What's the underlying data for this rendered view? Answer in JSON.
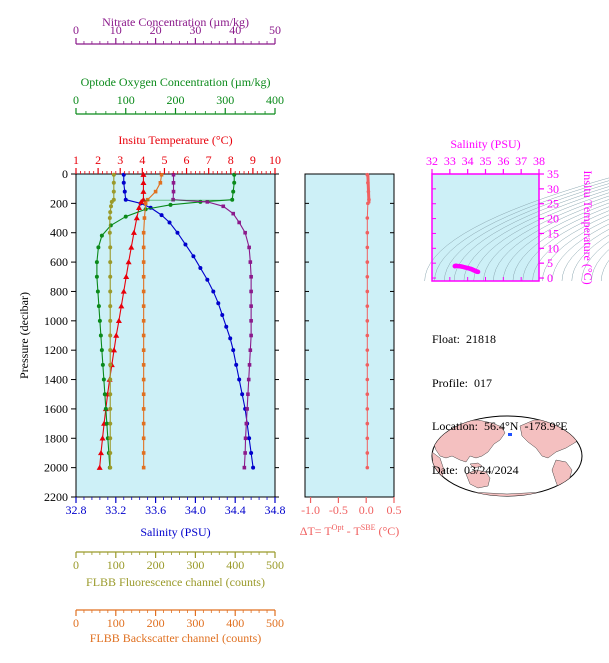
{
  "chart_data": [
    {
      "type": "line",
      "name": "main-profile",
      "ylabel": "Pressure (decibar)",
      "ylim": [
        2200,
        0
      ],
      "y_ticks": [
        0,
        200,
        400,
        600,
        800,
        1000,
        1200,
        1400,
        1600,
        1800,
        2000,
        2200
      ],
      "axes": [
        {
          "key": "nitrate",
          "label": "Nitrate Concentration (µm/kg)",
          "range": [
            0,
            50
          ],
          "ticks": [
            0,
            10,
            20,
            30,
            40,
            50
          ],
          "color": "#8b1a8b",
          "position": "top-1"
        },
        {
          "key": "oxygen",
          "label": "Optode Oxygen Concentration (µm/kg)",
          "range": [
            0,
            400
          ],
          "ticks": [
            0,
            100,
            200,
            300,
            400
          ],
          "color": "#0a8a1a",
          "position": "top-2"
        },
        {
          "key": "temperature",
          "label": "Insitu Temperature (°C)",
          "range": [
            1,
            10
          ],
          "ticks": [
            1,
            2,
            3,
            4,
            5,
            6,
            7,
            8,
            9,
            10
          ],
          "color": "#e8000b",
          "position": "top-3"
        },
        {
          "key": "salinity",
          "label": "Salinity (PSU)",
          "range": [
            32.8,
            34.8
          ],
          "ticks": [
            "32.8",
            "33.2",
            "33.6",
            "34.0",
            "34.4",
            "34.8"
          ],
          "color": "#0000cc",
          "position": "bottom-1"
        },
        {
          "key": "fluorescence",
          "label": "FLBB Fluorescence channel (counts)",
          "range": [
            0,
            500
          ],
          "ticks": [
            0,
            100,
            200,
            300,
            400,
            500
          ],
          "color": "#9a9a2a",
          "position": "bottom-2"
        },
        {
          "key": "backscatter",
          "label": "FLBB Backscatter channel (counts)",
          "range": [
            0,
            500
          ],
          "ticks": [
            0,
            100,
            200,
            300,
            400,
            500
          ],
          "color": "#e07020",
          "position": "bottom-3"
        }
      ],
      "series": [
        {
          "key": "salinity",
          "color": "#0000cc",
          "points": [
            [
              33.28,
              5
            ],
            [
              33.28,
              60
            ],
            [
              33.29,
              120
            ],
            [
              33.3,
              175
            ],
            [
              33.45,
              200
            ],
            [
              33.55,
              230
            ],
            [
              33.66,
              280
            ],
            [
              33.74,
              330
            ],
            [
              33.82,
              400
            ],
            [
              33.9,
              480
            ],
            [
              33.98,
              560
            ],
            [
              34.05,
              640
            ],
            [
              34.12,
              720
            ],
            [
              34.18,
              800
            ],
            [
              34.23,
              880
            ],
            [
              34.27,
              960
            ],
            [
              34.31,
              1040
            ],
            [
              34.35,
              1120
            ],
            [
              34.38,
              1200
            ],
            [
              34.41,
              1300
            ],
            [
              34.44,
              1400
            ],
            [
              34.47,
              1500
            ],
            [
              34.5,
              1600
            ],
            [
              34.52,
              1700
            ],
            [
              34.54,
              1800
            ],
            [
              34.56,
              1900
            ],
            [
              34.58,
              2000
            ]
          ]
        },
        {
          "key": "temperature",
          "color": "#e8000b",
          "points": [
            [
              4.05,
              5
            ],
            [
              4.05,
              60
            ],
            [
              4.05,
              120
            ],
            [
              4.05,
              175
            ],
            [
              3.95,
              190
            ],
            [
              3.85,
              230
            ],
            [
              3.75,
              300
            ],
            [
              3.62,
              400
            ],
            [
              3.5,
              500
            ],
            [
              3.38,
              600
            ],
            [
              3.27,
              700
            ],
            [
              3.16,
              800
            ],
            [
              3.05,
              900
            ],
            [
              2.94,
              1000
            ],
            [
              2.82,
              1100
            ],
            [
              2.72,
              1200
            ],
            [
              2.62,
              1300
            ],
            [
              2.52,
              1400
            ],
            [
              2.43,
              1500
            ],
            [
              2.35,
              1600
            ],
            [
              2.27,
              1700
            ],
            [
              2.2,
              1800
            ],
            [
              2.13,
              1900
            ],
            [
              2.07,
              2000
            ]
          ]
        },
        {
          "key": "oxygen",
          "color": "#0a8a1a",
          "points": [
            [
              318,
              5
            ],
            [
              318,
              60
            ],
            [
              316,
              120
            ],
            [
              314,
              175
            ],
            [
              250,
              190
            ],
            [
              190,
              210
            ],
            [
              140,
              240
            ],
            [
              100,
              290
            ],
            [
              70,
              350
            ],
            [
              52,
              420
            ],
            [
              45,
              500
            ],
            [
              42,
              600
            ],
            [
              42,
              700
            ],
            [
              44,
              800
            ],
            [
              46,
              900
            ],
            [
              48,
              1000
            ],
            [
              50,
              1100
            ],
            [
              52,
              1200
            ],
            [
              54,
              1300
            ],
            [
              56,
              1400
            ],
            [
              58,
              1500
            ],
            [
              60,
              1600
            ],
            [
              62,
              1700
            ],
            [
              64,
              1800
            ],
            [
              66,
              1900
            ],
            [
              68,
              2000
            ]
          ]
        },
        {
          "key": "nitrate",
          "color": "#8b1a8b",
          "points": [
            [
              24.5,
              5
            ],
            [
              24.5,
              60
            ],
            [
              24.5,
              120
            ],
            [
              24.4,
              175
            ],
            [
              33,
              190
            ],
            [
              37,
              220
            ],
            [
              39.5,
              270
            ],
            [
              41,
              330
            ],
            [
              42.5,
              400
            ],
            [
              43.5,
              500
            ],
            [
              43.8,
              600
            ],
            [
              44,
              700
            ],
            [
              44,
              800
            ],
            [
              44,
              900
            ],
            [
              44,
              1000
            ],
            [
              44,
              1100
            ],
            [
              43.8,
              1200
            ],
            [
              43.6,
              1300
            ],
            [
              43.4,
              1400
            ],
            [
              43.2,
              1500
            ],
            [
              43,
              1600
            ],
            [
              42.8,
              1700
            ],
            [
              42.6,
              1800
            ],
            [
              42.5,
              1900
            ],
            [
              42.3,
              2000
            ]
          ]
        },
        {
          "key": "fluorescence",
          "color": "#9a9a2a",
          "points": [
            [
              95,
              5
            ],
            [
              95,
              60
            ],
            [
              95,
              120
            ],
            [
              95,
              175
            ],
            [
              90,
              190
            ],
            [
              88,
              220
            ],
            [
              86,
              260
            ],
            [
              85,
              300
            ],
            [
              85,
              400
            ],
            [
              86,
              500
            ],
            [
              86,
              600
            ],
            [
              86,
              700
            ],
            [
              86,
              800
            ],
            [
              86,
              900
            ],
            [
              86,
              1000
            ],
            [
              86,
              1100
            ],
            [
              86,
              1200
            ],
            [
              86,
              1300
            ],
            [
              86,
              1400
            ],
            [
              86,
              1500
            ],
            [
              86,
              1600
            ],
            [
              86,
              1700
            ],
            [
              86,
              1800
            ],
            [
              86,
              1900
            ],
            [
              86,
              2000
            ]
          ]
        },
        {
          "key": "backscatter",
          "color": "#e07020",
          "points": [
            [
              215,
              5
            ],
            [
              212,
              60
            ],
            [
              200,
              120
            ],
            [
              180,
              175
            ],
            [
              175,
              200
            ],
            [
              172,
              300
            ],
            [
              170,
              400
            ],
            [
              170,
              500
            ],
            [
              170,
              600
            ],
            [
              170,
              700
            ],
            [
              170,
              800
            ],
            [
              170,
              900
            ],
            [
              170,
              1000
            ],
            [
              170,
              1100
            ],
            [
              170,
              1200
            ],
            [
              170,
              1300
            ],
            [
              170,
              1400
            ],
            [
              170,
              1500
            ],
            [
              170,
              1600
            ],
            [
              170,
              1700
            ],
            [
              170,
              1800
            ],
            [
              170,
              1900
            ],
            [
              170,
              2000
            ]
          ]
        }
      ]
    },
    {
      "type": "line",
      "name": "temperature-difference",
      "xlabel": "ΔT= T",
      "xlabel_sup1": "Opt",
      "xlabel_mid": " - T",
      "xlabel_sup2": "SBE",
      "xlabel_end": " (°C)",
      "xlim": [
        -1.1,
        0.5
      ],
      "x_ticks": [
        "-1.0",
        "-0.5",
        "0.0",
        "0.5"
      ],
      "ylim": [
        2200,
        0
      ],
      "color": "#f06060",
      "points": [
        [
          0.02,
          5
        ],
        [
          0.03,
          60
        ],
        [
          0.04,
          120
        ],
        [
          0.05,
          175
        ],
        [
          0.03,
          200
        ],
        [
          0.02,
          300
        ],
        [
          0.02,
          400
        ],
        [
          0.02,
          500
        ],
        [
          0.02,
          600
        ],
        [
          0.02,
          700
        ],
        [
          0.02,
          800
        ],
        [
          0.02,
          900
        ],
        [
          0.02,
          1000
        ],
        [
          0.02,
          1100
        ],
        [
          0.02,
          1200
        ],
        [
          0.02,
          1300
        ],
        [
          0.02,
          1400
        ],
        [
          0.02,
          1500
        ],
        [
          0.02,
          1600
        ],
        [
          0.02,
          1700
        ],
        [
          0.02,
          1800
        ],
        [
          0.02,
          1900
        ],
        [
          0.02,
          2000
        ]
      ]
    },
    {
      "type": "scatter",
      "name": "ts-diagram",
      "xlabel": "Salinity (PSU)",
      "ylabel": "Insitu Temperature (°C)",
      "xlim": [
        32,
        38
      ],
      "ylim": [
        -1,
        35
      ],
      "x_ticks": [
        32,
        33,
        34,
        35,
        36,
        37,
        38
      ],
      "y_ticks": [
        0,
        5,
        10,
        15,
        20,
        25,
        30,
        35
      ],
      "color": "#ff00ff",
      "points": [
        [
          33.3,
          4.05
        ],
        [
          33.28,
          4.0
        ],
        [
          33.35,
          4.1
        ],
        [
          33.42,
          4.05
        ],
        [
          33.5,
          4.0
        ],
        [
          33.58,
          3.95
        ],
        [
          33.66,
          3.85
        ],
        [
          33.74,
          3.75
        ],
        [
          33.82,
          3.62
        ],
        [
          33.9,
          3.5
        ],
        [
          33.98,
          3.38
        ],
        [
          34.05,
          3.27
        ],
        [
          34.12,
          3.16
        ],
        [
          34.18,
          3.05
        ],
        [
          34.23,
          2.94
        ],
        [
          34.27,
          2.82
        ],
        [
          34.31,
          2.72
        ],
        [
          34.35,
          2.62
        ],
        [
          34.38,
          2.52
        ],
        [
          34.41,
          2.43
        ],
        [
          34.44,
          2.35
        ],
        [
          34.47,
          2.27
        ],
        [
          34.5,
          2.2
        ],
        [
          34.54,
          2.13
        ],
        [
          34.58,
          2.07
        ]
      ]
    }
  ],
  "info": {
    "float_label": "Float:",
    "float_value": "21818",
    "profile_label": "Profile:",
    "profile_value": "017",
    "location_label": "Location:",
    "location_value": "56.4°N  -178.9°E",
    "date_label": "Date:",
    "date_value": "03/24/2024"
  },
  "colors": {
    "panel_fill": "#cdf0f7",
    "ts_color": "#cc00cc",
    "dt_color": "#f06060",
    "land": "#f4c0c0",
    "ocean": "#ffffff"
  }
}
